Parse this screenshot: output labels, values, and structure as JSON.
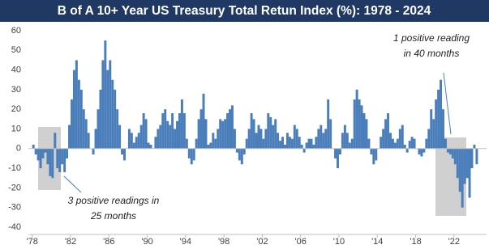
{
  "chart_data": {
    "type": "bar",
    "title": "B of A 10+ Year US Treasury Total Retun Index (%): 1978 - 2024",
    "color": "#4a7ebb",
    "x": [
      1978,
      1978.25,
      1978.5,
      1978.75,
      1979,
      1979.25,
      1979.5,
      1979.75,
      1980,
      1980.25,
      1980.5,
      1980.75,
      1981,
      1981.25,
      1981.5,
      1981.75,
      1982,
      1982.25,
      1982.5,
      1982.75,
      1983,
      1983.25,
      1983.5,
      1983.75,
      1984,
      1984.25,
      1984.5,
      1984.75,
      1985,
      1985.25,
      1985.5,
      1985.75,
      1986,
      1986.25,
      1986.5,
      1986.75,
      1987,
      1987.25,
      1987.5,
      1987.75,
      1988,
      1988.25,
      1988.5,
      1988.75,
      1989,
      1989.25,
      1989.5,
      1989.75,
      1990,
      1990.25,
      1990.5,
      1990.75,
      1991,
      1991.25,
      1991.5,
      1991.75,
      1992,
      1992.25,
      1992.5,
      1992.75,
      1993,
      1993.25,
      1993.5,
      1993.75,
      1994,
      1994.25,
      1994.5,
      1994.75,
      1995,
      1995.25,
      1995.5,
      1995.75,
      1996,
      1996.25,
      1996.5,
      1996.75,
      1997,
      1997.25,
      1997.5,
      1997.75,
      1998,
      1998.25,
      1998.5,
      1998.75,
      1999,
      1999.25,
      1999.5,
      1999.75,
      2000,
      2000.25,
      2000.5,
      2000.75,
      2001,
      2001.25,
      2001.5,
      2001.75,
      2002,
      2002.25,
      2002.5,
      2002.75,
      2003,
      2003.25,
      2003.5,
      2003.75,
      2004,
      2004.25,
      2004.5,
      2004.75,
      2005,
      2005.25,
      2005.5,
      2005.75,
      2006,
      2006.25,
      2006.5,
      2006.75,
      2007,
      2007.25,
      2007.5,
      2007.75,
      2008,
      2008.25,
      2008.5,
      2008.75,
      2009,
      2009.25,
      2009.5,
      2009.75,
      2010,
      2010.25,
      2010.5,
      2010.75,
      2011,
      2011.25,
      2011.5,
      2011.75,
      2012,
      2012.25,
      2012.5,
      2012.75,
      2013,
      2013.25,
      2013.5,
      2013.75,
      2014,
      2014.25,
      2014.5,
      2014.75,
      2015,
      2015.25,
      2015.5,
      2015.75,
      2016,
      2016.25,
      2016.5,
      2016.75,
      2017,
      2017.25,
      2017.5,
      2017.75,
      2018,
      2018.25,
      2018.5,
      2018.75,
      2019,
      2019.25,
      2019.5,
      2019.75,
      2020,
      2020.25,
      2020.5,
      2020.75,
      2021,
      2021.25,
      2021.5,
      2021.75,
      2022,
      2022.25,
      2022.5,
      2022.75,
      2023,
      2023.25,
      2023.5,
      2023.75,
      2024,
      2024.25
    ],
    "values": [
      2,
      -3,
      -6,
      -10,
      -5,
      -2,
      -8,
      -14,
      -15,
      8,
      -10,
      -12,
      -8,
      -12,
      -5,
      12,
      25,
      40,
      45,
      35,
      30,
      20,
      15,
      8,
      0,
      -3,
      10,
      20,
      30,
      45,
      55,
      40,
      45,
      35,
      30,
      20,
      12,
      -3,
      -6,
      0,
      10,
      8,
      3,
      6,
      8,
      12,
      18,
      15,
      3,
      2,
      0,
      6,
      10,
      12,
      18,
      20,
      14,
      12,
      18,
      10,
      14,
      18,
      25,
      18,
      5,
      -5,
      -8,
      -6,
      5,
      15,
      20,
      28,
      15,
      2,
      3,
      8,
      5,
      10,
      15,
      14,
      15,
      18,
      20,
      22,
      10,
      -2,
      -6,
      -8,
      -3,
      5,
      10,
      18,
      15,
      8,
      12,
      10,
      5,
      10,
      18,
      16,
      12,
      15,
      8,
      4,
      6,
      2,
      8,
      6,
      5,
      12,
      10,
      6,
      2,
      -2,
      3,
      5,
      5,
      2,
      6,
      10,
      12,
      8,
      10,
      25,
      15,
      0,
      -5,
      -10,
      -3,
      8,
      12,
      8,
      3,
      5,
      25,
      30,
      25,
      22,
      18,
      15,
      5,
      -3,
      -8,
      -6,
      0,
      6,
      10,
      15,
      18,
      8,
      5,
      3,
      5,
      10,
      12,
      2,
      -2,
      4,
      6,
      5,
      0,
      -3,
      -4,
      -2,
      5,
      10,
      20,
      15,
      25,
      30,
      35,
      20,
      5,
      -2,
      -3,
      -5,
      -8,
      -15,
      -22,
      -30,
      -18,
      -15,
      -25,
      -10,
      2,
      -8
    ],
    "xlim": [
      1977.6,
      2025.4
    ],
    "xticks": [
      {
        "value": 1978,
        "label": "'78"
      },
      {
        "value": 1982,
        "label": "'82"
      },
      {
        "value": 1986,
        "label": "'86"
      },
      {
        "value": 1990,
        "label": "'90"
      },
      {
        "value": 1994,
        "label": "'94"
      },
      {
        "value": 1998,
        "label": "'98"
      },
      {
        "value": 2002,
        "label": "'02"
      },
      {
        "value": 2006,
        "label": "'06"
      },
      {
        "value": 2010,
        "label": "'10"
      },
      {
        "value": 2014,
        "label": "'14"
      },
      {
        "value": 2018,
        "label": "'18"
      },
      {
        "value": 2022,
        "label": "'22"
      }
    ],
    "ylim": [
      -40,
      60
    ],
    "yticks": [
      -40,
      -30,
      -20,
      -10,
      0,
      10,
      20,
      30,
      40,
      50,
      60
    ],
    "grid": false,
    "annotations": [
      {
        "lines": [
          "3 positive readings in",
          "25 months"
        ]
      },
      {
        "lines": [
          "1 positive reading",
          "in 40 months"
        ]
      }
    ]
  }
}
